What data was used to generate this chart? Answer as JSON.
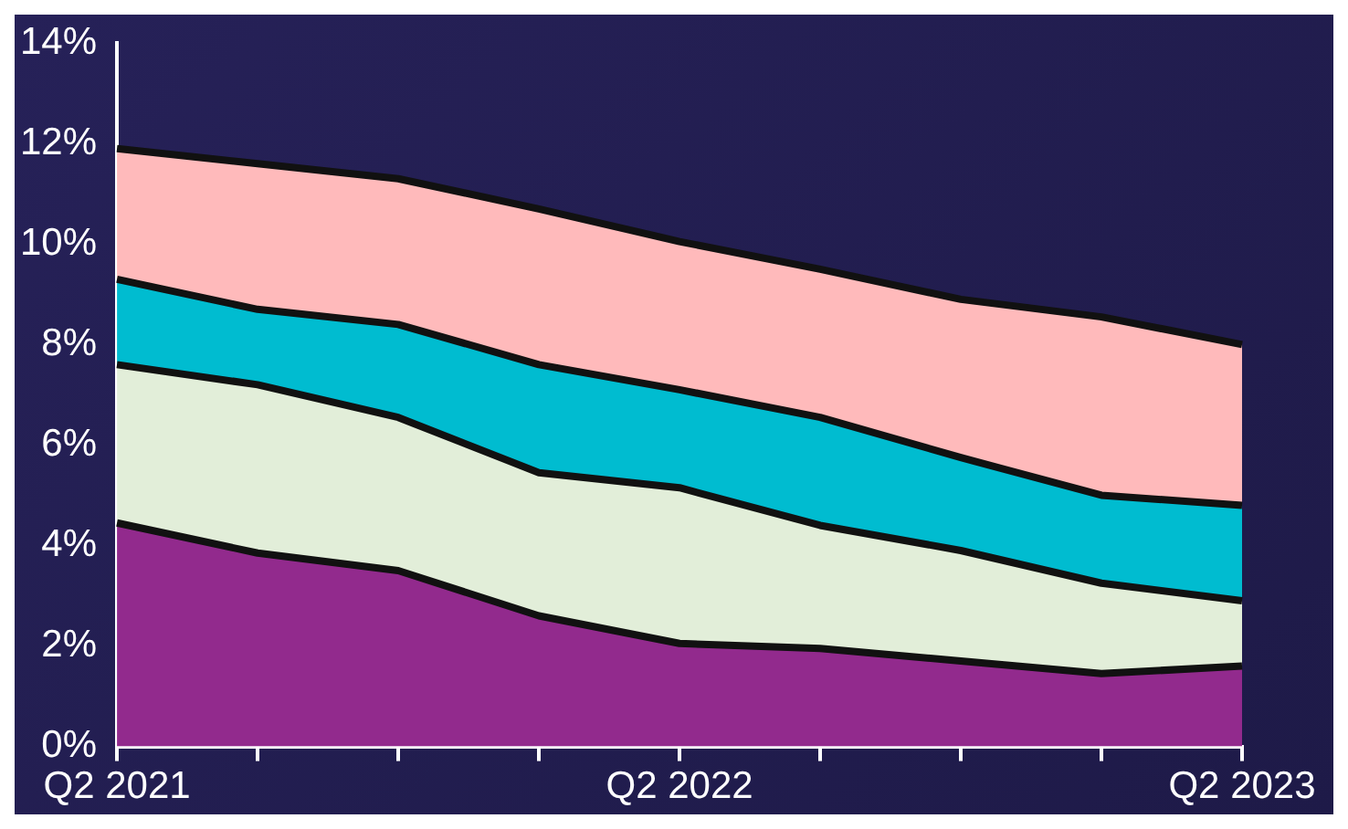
{
  "chart_data": {
    "type": "area",
    "stacked": true,
    "categories": [
      "Q2 2021",
      null,
      null,
      null,
      "Q2 2022",
      null,
      null,
      null,
      "Q2 2023"
    ],
    "series": [
      {
        "color": "#922a8d",
        "values": [
          4.45,
          3.85,
          3.5,
          2.6,
          2.05,
          1.95,
          1.7,
          1.45,
          1.6
        ]
      },
      {
        "color": "#e2eed9",
        "values": [
          3.15,
          3.35,
          3.05,
          2.85,
          3.1,
          2.45,
          2.2,
          1.8,
          1.3
        ]
      },
      {
        "color": "#00bcd0",
        "values": [
          1.7,
          1.5,
          1.85,
          2.15,
          1.95,
          2.15,
          1.85,
          1.75,
          1.9
        ]
      },
      {
        "color": "#ffbabb",
        "values": [
          2.6,
          2.9,
          2.9,
          3.1,
          2.95,
          2.95,
          3.15,
          3.55,
          3.2
        ]
      }
    ],
    "ylim": [
      0,
      14
    ],
    "yticks": [
      {
        "value": 0,
        "label": "0%"
      },
      {
        "value": 2,
        "label": "2%"
      },
      {
        "value": 4,
        "label": "4%"
      },
      {
        "value": 6,
        "label": "6%"
      },
      {
        "value": 8,
        "label": "8%"
      },
      {
        "value": 10,
        "label": "10%"
      },
      {
        "value": 12,
        "label": "12%"
      },
      {
        "value": 14,
        "label": "14%"
      }
    ],
    "grid": false,
    "legend": false
  }
}
